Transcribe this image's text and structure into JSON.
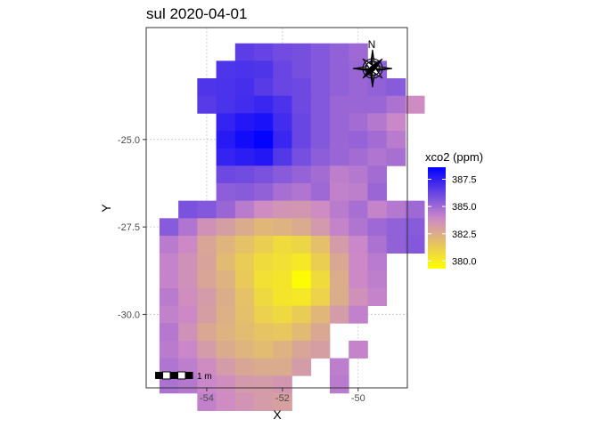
{
  "chart_data": {
    "type": "heatmap",
    "title": "sul 2020-04-01",
    "xlabel": "X",
    "ylabel": "Y",
    "xlim": [
      -55.6,
      -48.7
    ],
    "ylim": [
      -32.1,
      -21.8
    ],
    "x_ticks": [
      -54,
      -52,
      -50
    ],
    "x_tick_labels": [
      "-54",
      "-52",
      "-50"
    ],
    "y_ticks": [
      -25,
      -27.5,
      -30
    ],
    "y_tick_labels": [
      "-25.0",
      "-27.5",
      "-30.0"
    ],
    "grid": true,
    "cell_size": 0.5,
    "rows_top_y": -22.5,
    "rows_first_x": -53.5,
    "rows": [
      {
        "x0": -53.0,
        "values": [
          386.5,
          386.3,
          386.0,
          385.9,
          385.6,
          385.3,
          385.0
        ]
      },
      {
        "x0": -53.5,
        "values": [
          386.8,
          386.9,
          386.8,
          386.2,
          385.9,
          385.6,
          385.3,
          385.1,
          385.3
        ]
      },
      {
        "x0": -54.0,
        "values": [
          386.8,
          386.9,
          387.0,
          386.6,
          386.2,
          386.1,
          385.6,
          385.3,
          385.1,
          385.3,
          385.5
        ]
      },
      {
        "x0": -54.0,
        "values": [
          386.6,
          386.9,
          387.1,
          387.3,
          386.9,
          386.1,
          385.6,
          385.1,
          385.1,
          385.1,
          384.7,
          383.8
        ]
      },
      {
        "x0": -53.5,
        "values": [
          387.4,
          387.8,
          388.0,
          387.1,
          386.2,
          385.6,
          385.1,
          384.9,
          384.5,
          384.0
        ]
      },
      {
        "x0": -53.5,
        "values": [
          387.7,
          388.2,
          388.5,
          387.3,
          386.2,
          385.6,
          385.1,
          385.2,
          384.9,
          384.4
        ]
      },
      {
        "x0": -53.5,
        "values": [
          387.4,
          387.6,
          387.8,
          386.7,
          385.9,
          385.4,
          385.1,
          384.9,
          384.6,
          384.8
        ]
      },
      {
        "x0": -53.5,
        "values": [
          386.1,
          386.0,
          385.8,
          385.5,
          385.2,
          384.9,
          384.3,
          384.5,
          384.9
        ]
      },
      {
        "x0": -53.5,
        "values": [
          385.4,
          385.5,
          385.3,
          384.8,
          384.6,
          385.0,
          384.2,
          384.3,
          385.1
        ]
      },
      {
        "x0": -54.5,
        "values": [
          385.8,
          385.6,
          385.1,
          384.4,
          383.8,
          383.5,
          383.4,
          383.8,
          384.4,
          384.8,
          384.1,
          384.5,
          385.0
        ]
      },
      {
        "x0": -55.0,
        "values": [
          385.5,
          384.6,
          383.6,
          383.1,
          382.6,
          382.1,
          382.3,
          382.6,
          383.3,
          384.1,
          384.6,
          385.0,
          385.3,
          385.5
        ]
      },
      {
        "x0": -55.0,
        "values": [
          384.4,
          383.9,
          382.8,
          382.2,
          381.7,
          381.2,
          380.7,
          380.9,
          381.8,
          383.2,
          384.0,
          384.7,
          385.3,
          385.6
        ]
      },
      {
        "x0": -55.0,
        "values": [
          384.1,
          383.6,
          382.9,
          382.0,
          381.3,
          380.7,
          380.5,
          380.2,
          381.2,
          382.7,
          383.9,
          384.4
        ]
      },
      {
        "x0": -55.0,
        "values": [
          384.1,
          383.6,
          382.8,
          382.3,
          381.4,
          380.5,
          380.3,
          379.4,
          380.7,
          382.5,
          383.9,
          384.3
        ]
      },
      {
        "x0": -55.0,
        "values": [
          384.4,
          383.7,
          383.2,
          382.5,
          381.7,
          380.8,
          380.3,
          380.2,
          381.0,
          382.5,
          383.6,
          384.1
        ]
      },
      {
        "x0": -55.0,
        "values": [
          384.2,
          383.9,
          383.1,
          382.4,
          381.8,
          381.1,
          380.8,
          381.3,
          382.1,
          383.2,
          384.2
        ]
      },
      {
        "x0": -55.0,
        "values": [
          384.5,
          383.6,
          382.7,
          382.3,
          381.9,
          381.6,
          381.5,
          382.0,
          382.7
        ]
      },
      {
        "x0": -55.0,
        "values": [
          384.4,
          384.0,
          383.2,
          382.6,
          382.2,
          381.9,
          382.3,
          382.8,
          383.1,
          null,
          384.1
        ]
      },
      {
        "x0": -55.0,
        "values": [
          384.6,
          384.3,
          383.8,
          383.2,
          382.8,
          382.6,
          382.6,
          383.2,
          null,
          384.3
        ]
      },
      {
        "x0": -55.0,
        "values": [
          384.7,
          384.5,
          384.0,
          383.7,
          383.3,
          383.2,
          383.4,
          null,
          null,
          384.4
        ]
      },
      {
        "x0": -54.0,
        "values": [
          384.2,
          383.8,
          383.5,
          383.2,
          383.0
        ]
      }
    ],
    "legend": {
      "title": "xco2 (ppm)",
      "placement": "right",
      "ticks": [
        387.5,
        385.0,
        382.5,
        380.0
      ],
      "tick_labels": [
        "387.5",
        "385.0",
        "382.5",
        "380.0"
      ],
      "min": 379.3,
      "max": 388.6
    },
    "colors": {
      "low": "#ffff00",
      "mid": "#cc88c8",
      "high": "#0000ff"
    },
    "scalebar_label": "1 m",
    "north_arrow_label": "N"
  }
}
